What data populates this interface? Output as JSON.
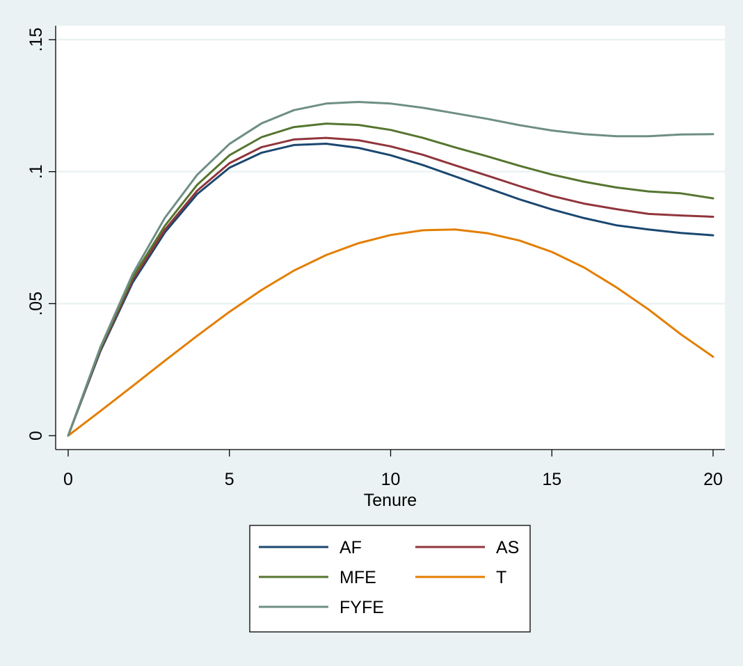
{
  "chart_data": {
    "type": "line",
    "xlabel": "Tenure",
    "ylabel": "",
    "xlim": [
      0,
      20
    ],
    "ylim": [
      0,
      0.15
    ],
    "x_ticks": [
      0,
      5,
      10,
      15,
      20
    ],
    "x_tick_labels": [
      "0",
      "5",
      "10",
      "15",
      "20"
    ],
    "y_ticks": [
      0,
      0.05,
      0.1,
      0.15
    ],
    "y_tick_labels": [
      "0",
      ".05",
      ".1",
      ".15"
    ],
    "grid": true,
    "legend_position": "bottom",
    "x": [
      0,
      1,
      2,
      3,
      4,
      5,
      6,
      7,
      8,
      9,
      10,
      11,
      12,
      13,
      14,
      15,
      16,
      17,
      18,
      19,
      20
    ],
    "series": [
      {
        "name": "AF",
        "color": "#1a476f",
        "values": [
          0,
          0.032,
          0.058,
          0.077,
          0.0915,
          0.1015,
          0.1072,
          0.1101,
          0.1106,
          0.109,
          0.1062,
          0.1025,
          0.0982,
          0.0938,
          0.0895,
          0.0857,
          0.0824,
          0.0797,
          0.0781,
          0.0768,
          0.0759
        ]
      },
      {
        "name": "AS",
        "color": "#90353b",
        "values": [
          0,
          0.0325,
          0.059,
          0.078,
          0.0928,
          0.1032,
          0.1093,
          0.1122,
          0.1128,
          0.1119,
          0.1096,
          0.1064,
          0.1024,
          0.0985,
          0.0945,
          0.0908,
          0.0879,
          0.0858,
          0.084,
          0.0834,
          0.0829
        ]
      },
      {
        "name": "MFE",
        "color": "#55752f",
        "values": [
          0,
          0.033,
          0.06,
          0.0795,
          0.095,
          0.1062,
          0.1131,
          0.1169,
          0.1182,
          0.1177,
          0.1158,
          0.1128,
          0.1092,
          0.1058,
          0.1022,
          0.0989,
          0.0962,
          0.094,
          0.0925,
          0.0918,
          0.0899
        ]
      },
      {
        "name": "T",
        "color": "#e37e00",
        "values": [
          0,
          0.0093,
          0.0188,
          0.0284,
          0.0378,
          0.0469,
          0.0552,
          0.0625,
          0.0684,
          0.0729,
          0.076,
          0.0778,
          0.0781,
          0.0767,
          0.0739,
          0.0696,
          0.0637,
          0.0562,
          0.0478,
          0.0384,
          0.0299
        ]
      },
      {
        "name": "FYFE",
        "color": "#6e8e84",
        "values": [
          0,
          0.0335,
          0.0612,
          0.0825,
          0.0988,
          0.1105,
          0.1183,
          0.1233,
          0.1258,
          0.1264,
          0.1258,
          0.1242,
          0.1221,
          0.12,
          0.1176,
          0.1156,
          0.1142,
          0.1134,
          0.1134,
          0.1141,
          0.1142
        ]
      }
    ]
  }
}
